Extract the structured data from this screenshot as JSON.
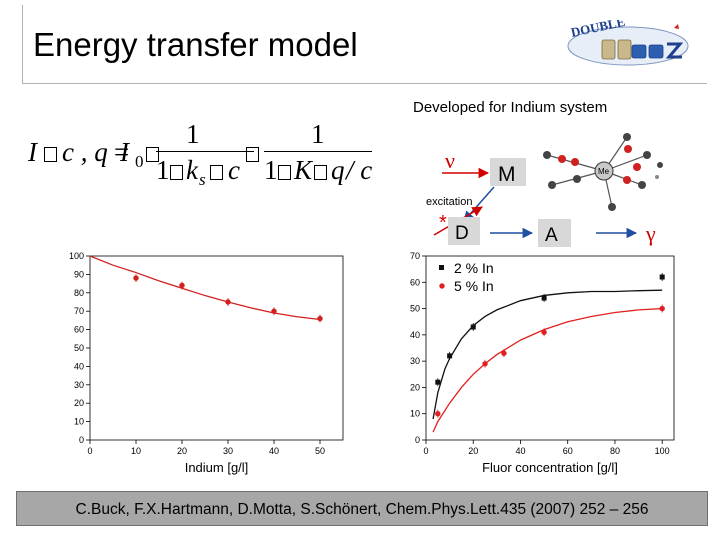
{
  "slide": {
    "title": "Energy transfer model",
    "subtitle": "Developed for Indium system",
    "citation": "C.Buck, F.X.Hartmann, D.Motta, S.Schönert, Chem.Phys.Lett.435 (2007) 252 – 256",
    "logo_text": "DOUBLE",
    "logo_icon": "double-chooz-logo"
  },
  "formula": {
    "lhs_I": "I",
    "lhs_args": "c , q",
    "equals": "=",
    "I0": "I",
    "zero": "0",
    "one_a": "1",
    "one_b": "1",
    "den1_one": "1",
    "den1_k": "k",
    "den1_sub": "s",
    "den1_c": "c",
    "den2_one": "1",
    "den2_K": "K",
    "den2_q": "q",
    "den2_slash_c": "/ c"
  },
  "scheme": {
    "nu": "ν",
    "M": "M",
    "excitation": "excitation",
    "star": "*",
    "D": "D",
    "A": "A",
    "gamma": "γ",
    "me_label": "Me",
    "colors": {
      "red": "#d00000",
      "blue": "#1f4fa0",
      "box_fill": "#d8d8d8"
    }
  },
  "chart_data": [
    {
      "type": "scatter",
      "xlabel": "Indium [g/l]",
      "ylabel": "",
      "xlim": [
        0,
        55
      ],
      "ylim": [
        0,
        100
      ],
      "x_ticks": [
        0,
        10,
        20,
        30,
        40,
        50
      ],
      "y_ticks": [
        0,
        10,
        20,
        30,
        40,
        50,
        60,
        70,
        80,
        90,
        100
      ],
      "series": [
        {
          "color": "#d22020",
          "x": [
            10,
            20,
            30,
            40,
            50
          ],
          "y": [
            88,
            84,
            75,
            70,
            66
          ],
          "fit_x": [
            0,
            5,
            10,
            15,
            20,
            25,
            30,
            35,
            40,
            45,
            50
          ],
          "fit_y": [
            100,
            95,
            91,
            86.5,
            82.5,
            78.5,
            75,
            71.8,
            69,
            67,
            65.5
          ]
        }
      ]
    },
    {
      "type": "scatter",
      "xlabel": "Fluor concentration [g/l]",
      "ylabel": "",
      "xlim": [
        0,
        105
      ],
      "ylim": [
        0,
        70
      ],
      "x_ticks": [
        0,
        20,
        40,
        60,
        80,
        100
      ],
      "y_ticks": [
        0,
        10,
        20,
        30,
        40,
        50,
        60,
        70
      ],
      "legend_position": "top-left",
      "series": [
        {
          "name": "2 % In",
          "color": "#111111",
          "marker": "square",
          "x": [
            5,
            10,
            20,
            50,
            100
          ],
          "y": [
            22,
            32,
            43,
            54,
            62
          ],
          "fit_x": [
            3,
            5,
            8,
            10,
            15,
            20,
            25,
            30,
            40,
            50,
            60,
            70,
            80,
            90,
            100
          ],
          "fit_y": [
            8,
            18,
            27,
            31,
            38.5,
            43.5,
            47,
            49.5,
            53,
            55,
            56,
            56.5,
            56.5,
            56.8,
            57
          ]
        },
        {
          "name": "5 % In",
          "color": "#e02020",
          "marker": "circle",
          "x": [
            5,
            25,
            33,
            50,
            100
          ],
          "y": [
            10,
            29,
            33,
            41,
            50
          ],
          "fit_x": [
            3,
            5,
            10,
            15,
            20,
            25,
            30,
            40,
            50,
            60,
            70,
            80,
            90,
            100
          ],
          "fit_y": [
            3,
            7,
            14,
            20,
            25,
            29,
            32.5,
            38,
            42,
            45,
            47,
            48.5,
            49.5,
            50
          ]
        }
      ]
    }
  ]
}
